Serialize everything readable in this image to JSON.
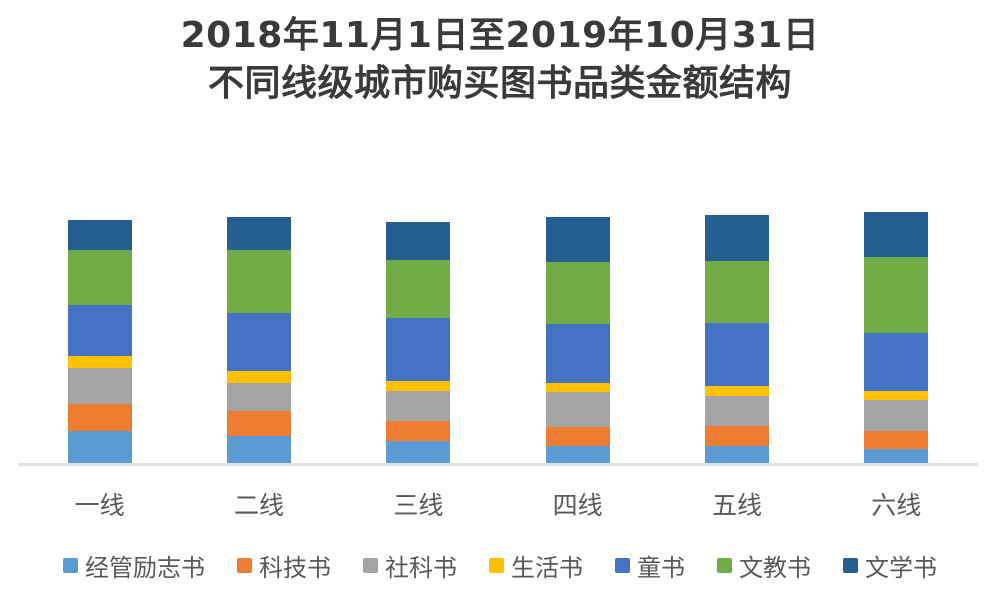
{
  "title": {
    "line1": "2018年11月1日至2019年10月31日",
    "line2": "不同线级城市购买图书品类金额结构"
  },
  "chart_data": {
    "type": "bar",
    "subtype": "stacked-percent",
    "title": "2018年11月1日至2019年10月31日 不同线级城市购买图书品类金额结构",
    "xlabel": "",
    "ylabel": "",
    "ylim": [
      0,
      100
    ],
    "y_axis_visible": false,
    "grid": false,
    "legend_position": "bottom",
    "categories": [
      "一线",
      "二线",
      "三线",
      "四线",
      "五线",
      "六线"
    ],
    "series": [
      {
        "name": "经管励志书",
        "color": "#5B9BD5",
        "values": [
          13,
          11,
          9,
          7,
          7,
          6
        ]
      },
      {
        "name": "科技书",
        "color": "#ED7D31",
        "values": [
          11,
          10,
          8,
          7.5,
          8,
          7
        ]
      },
      {
        "name": "社科书",
        "color": "#A5A5A5",
        "values": [
          14,
          11,
          12,
          14,
          12,
          12.5
        ]
      },
      {
        "name": "生活书",
        "color": "#FFC000",
        "values": [
          5,
          5,
          4,
          3.5,
          4,
          3.5
        ]
      },
      {
        "name": "童书",
        "color": "#4472C4",
        "values": [
          20,
          23,
          25,
          23.5,
          25,
          23
        ]
      },
      {
        "name": "文教书",
        "color": "#70AD47",
        "values": [
          22,
          25,
          23,
          24.5,
          24.5,
          30
        ]
      },
      {
        "name": "文学书",
        "color": "#255E91",
        "values": [
          12,
          13,
          15,
          18,
          18.5,
          18
        ]
      }
    ]
  },
  "colors": {
    "background": "#FFFFFF",
    "title_text": "#3A3A3A",
    "axis_label_text": "#595959",
    "legend_text": "#595959",
    "axis_line": "#E2E2E2"
  }
}
